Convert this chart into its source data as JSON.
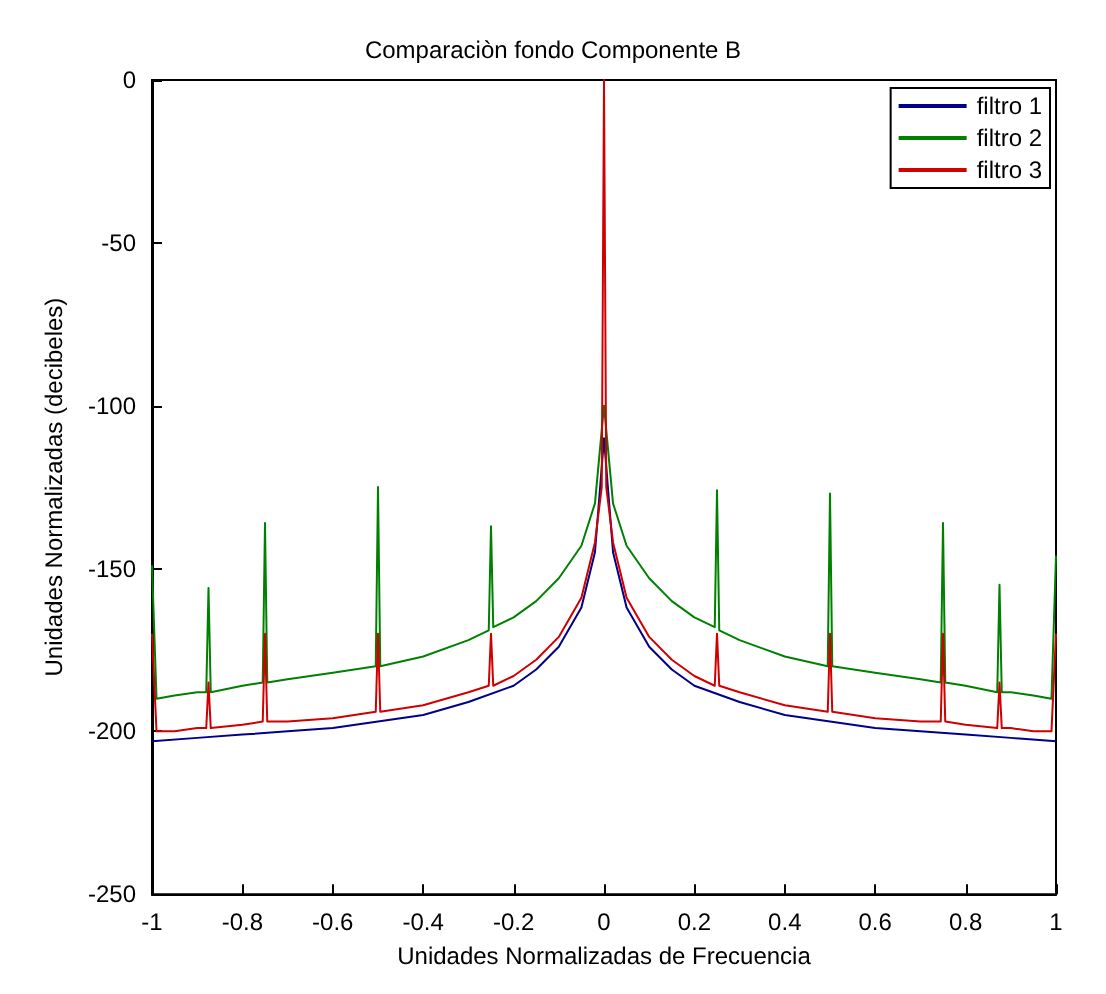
{
  "chart_data": {
    "type": "line",
    "title": "Comparaciòn fondo Componente B",
    "xlabel": "Unidades Normalizadas de Frecuencia",
    "ylabel": "Unidades Normalizadas (decibeles)",
    "xlim": [
      -1,
      1
    ],
    "ylim": [
      -250,
      0
    ],
    "xticks": [
      -1,
      -0.8,
      -0.6,
      -0.4,
      -0.2,
      0,
      0.2,
      0.4,
      0.6,
      0.8,
      1
    ],
    "yticks": [
      -250,
      -200,
      -150,
      -100,
      -50,
      0
    ],
    "grid": false,
    "legend": "top right",
    "series": [
      {
        "name": "filtro 1",
        "color": "#00008b",
        "x": [
          -1,
          -0.9,
          -0.8,
          -0.7,
          -0.6,
          -0.5,
          -0.4,
          -0.3,
          -0.2,
          -0.15,
          -0.1,
          -0.05,
          -0.02,
          0,
          0.02,
          0.05,
          0.1,
          0.15,
          0.2,
          0.3,
          0.4,
          0.5,
          0.6,
          0.7,
          0.8,
          0.9,
          1
        ],
        "values": [
          -203,
          -202,
          -201,
          -200,
          -199,
          -197,
          -195,
          -191,
          -186,
          -181,
          -174,
          -162,
          -145,
          -110,
          -145,
          -162,
          -174,
          -181,
          -186,
          -191,
          -195,
          -197,
          -199,
          -200,
          -201,
          -202,
          -203
        ]
      },
      {
        "name": "filtro 2",
        "color": "#008000",
        "x": [
          -1,
          -0.99,
          -0.95,
          -0.9,
          -0.88,
          -0.875,
          -0.87,
          -0.8,
          -0.755,
          -0.75,
          -0.745,
          -0.7,
          -0.6,
          -0.505,
          -0.5,
          -0.495,
          -0.4,
          -0.3,
          -0.255,
          -0.25,
          -0.245,
          -0.2,
          -0.15,
          -0.1,
          -0.05,
          -0.02,
          0,
          0.02,
          0.05,
          0.1,
          0.15,
          0.2,
          0.245,
          0.25,
          0.255,
          0.3,
          0.4,
          0.495,
          0.5,
          0.505,
          0.6,
          0.7,
          0.745,
          0.75,
          0.755,
          0.8,
          0.87,
          0.875,
          0.88,
          0.9,
          0.95,
          0.99,
          1
        ],
        "values": [
          -149,
          -190,
          -189,
          -188,
          -188,
          -156,
          -188,
          -186,
          -185,
          -136,
          -185,
          -184,
          -182,
          -180,
          -125,
          -180,
          -177,
          -172,
          -169,
          -137,
          -168,
          -165,
          -160,
          -153,
          -143,
          -130,
          -100,
          -130,
          -143,
          -153,
          -160,
          -165,
          -168,
          -126,
          -169,
          -172,
          -177,
          -180,
          -127,
          -180,
          -182,
          -184,
          -185,
          -136,
          -185,
          -186,
          -188,
          -155,
          -188,
          -188,
          -189,
          -190,
          -146
        ]
      },
      {
        "name": "filtro 3",
        "color": "#d00000",
        "x": [
          -1,
          -0.99,
          -0.95,
          -0.9,
          -0.88,
          -0.875,
          -0.87,
          -0.8,
          -0.755,
          -0.75,
          -0.745,
          -0.7,
          -0.6,
          -0.505,
          -0.5,
          -0.495,
          -0.4,
          -0.3,
          -0.255,
          -0.25,
          -0.245,
          -0.2,
          -0.15,
          -0.1,
          -0.05,
          -0.02,
          -0.005,
          0,
          0.005,
          0.02,
          0.05,
          0.1,
          0.15,
          0.2,
          0.245,
          0.25,
          0.255,
          0.3,
          0.4,
          0.495,
          0.5,
          0.505,
          0.6,
          0.7,
          0.745,
          0.75,
          0.755,
          0.8,
          0.87,
          0.875,
          0.88,
          0.9,
          0.95,
          0.99,
          1
        ],
        "values": [
          -170,
          -200,
          -200,
          -199,
          -199,
          -185,
          -199,
          -198,
          -197,
          -170,
          -197,
          -197,
          -196,
          -194,
          -170,
          -194,
          -192,
          -188,
          -186,
          -170,
          -186,
          -183,
          -178,
          -171,
          -159,
          -142,
          -125,
          0,
          -125,
          -142,
          -159,
          -171,
          -178,
          -183,
          -186,
          -170,
          -186,
          -188,
          -192,
          -194,
          -170,
          -194,
          -196,
          -197,
          -197,
          -170,
          -197,
          -198,
          -199,
          -185,
          -199,
          -199,
          -200,
          -200,
          -170
        ]
      }
    ]
  }
}
